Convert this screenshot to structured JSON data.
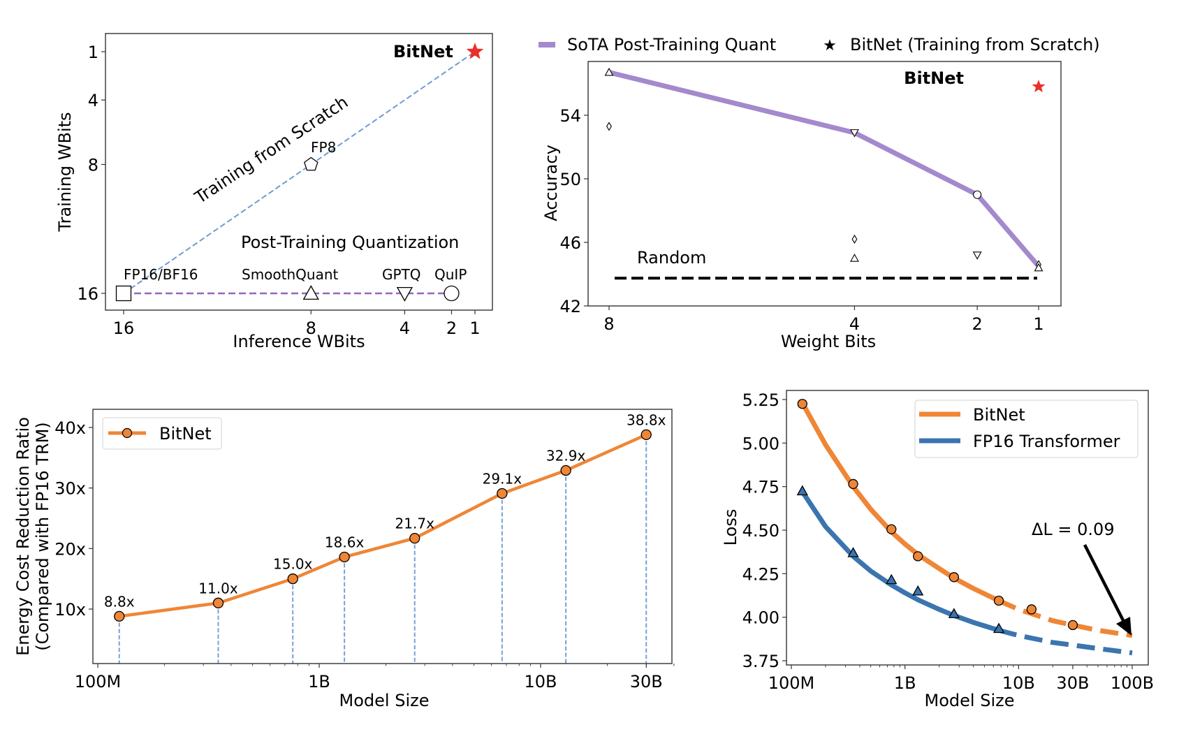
{
  "colors": {
    "bitnet_red": "#e8312a",
    "scratch_blue": "#6f9bd1",
    "ptq_purple": "#9467bd",
    "sota_line": "#a489cc",
    "orange": "#ef8636",
    "blue": "#3b75af",
    "black": "#000000",
    "stem_blue": "#7a9fd6"
  },
  "chart_data": [
    {
      "id": "wbits",
      "type": "scatter",
      "title": "",
      "xlabel": "Inference WBits",
      "ylabel": "Training WBits",
      "xlim": [
        16.5,
        0.25
      ],
      "ylim": [
        -0.1,
        17.1
      ],
      "x_inverted": true,
      "y_inverted": true,
      "xticks": [
        16,
        8,
        4,
        2,
        1
      ],
      "xtick_labels": [
        "16",
        "8",
        "4",
        "2",
        "1"
      ],
      "yticks": [
        1,
        4,
        8,
        16
      ],
      "ytick_labels": [
        "1",
        "4",
        "8",
        "16"
      ],
      "points": [
        {
          "label": "FP16/BF16",
          "x": 16,
          "y": 16,
          "marker": "square"
        },
        {
          "label": "SmoothQuant",
          "x": 8,
          "y": 16,
          "marker": "triangle-up"
        },
        {
          "label": "GPTQ",
          "x": 4,
          "y": 16,
          "marker": "triangle-down"
        },
        {
          "label": "QuIP",
          "x": 2,
          "y": 16,
          "marker": "circle"
        },
        {
          "label": "FP8",
          "x": 8,
          "y": 8,
          "marker": "pentagon"
        },
        {
          "label": "BitNet",
          "x": 1,
          "y": 1,
          "marker": "star"
        }
      ],
      "lines": [
        {
          "name": "Training from Scratch",
          "x": [
            16,
            1
          ],
          "y": [
            16,
            1
          ],
          "style": "dashed",
          "color_key": "scratch_blue"
        },
        {
          "name": "Post-Training Quantization",
          "x": [
            16,
            2
          ],
          "y": [
            16,
            16
          ],
          "style": "dashed",
          "color_key": "ptq_purple"
        }
      ],
      "annotations": [
        {
          "text": "Training from Scratch",
          "color_key": "scratch_blue"
        },
        {
          "text": "Post-Training Quantization",
          "color_key": "ptq_purple"
        },
        {
          "text": "BitNet",
          "color_key": "bitnet_red",
          "bold": true
        }
      ]
    },
    {
      "id": "accuracy",
      "type": "line",
      "xlabel": "Weight Bits",
      "ylabel": "Accuracy",
      "xlim": [
        8.35,
        -0.55
      ],
      "x_inverted": true,
      "ylim": [
        42,
        57.4
      ],
      "xticks": [
        8,
        4,
        2,
        1
      ],
      "xtick_labels": [
        "8",
        "4",
        "2",
        "1"
      ],
      "yticks": [
        42,
        46,
        50,
        54
      ],
      "ytick_labels": [
        "42",
        "46",
        "50",
        "54"
      ],
      "legend": {
        "placement": "top-outside",
        "entries": [
          {
            "label": "SoTA Post-Training Quant",
            "marker": "line",
            "color_key": "sota_line"
          },
          {
            "label": "BitNet (Training from Scratch)",
            "marker": "star",
            "color_key": "bitnet_red"
          }
        ]
      },
      "series": [
        {
          "name": "SoTA Post-Training Quant",
          "x": [
            8,
            4,
            2,
            1
          ],
          "y": [
            56.7,
            52.9,
            49.0,
            44.5
          ]
        }
      ],
      "method_points": [
        {
          "x": 8,
          "y": 56.7,
          "marker": "triangle-up"
        },
        {
          "x": 8,
          "y": 53.3,
          "marker": "diamond"
        },
        {
          "x": 4,
          "y": 52.9,
          "marker": "triangle-down"
        },
        {
          "x": 4,
          "y": 46.2,
          "marker": "diamond"
        },
        {
          "x": 4,
          "y": 45.0,
          "marker": "triangle-up"
        },
        {
          "x": 2,
          "y": 49.0,
          "marker": "circle"
        },
        {
          "x": 2,
          "y": 45.2,
          "marker": "triangle-down"
        },
        {
          "x": 1,
          "y": 44.6,
          "marker": "diamond"
        },
        {
          "x": 1,
          "y": 44.4,
          "marker": "triangle-up"
        }
      ],
      "bitnet": {
        "label": "BitNet",
        "x": 1,
        "y": 55.8
      },
      "random_baseline": {
        "label": "Random",
        "y": 43.75,
        "x_range": [
          8,
          1
        ]
      }
    },
    {
      "id": "energy",
      "type": "line",
      "xlabel": "Model Size",
      "ylabel": "Energy Cost Reduction Ratio\n(Compared with FP16 TRM)",
      "ylabel_lines": [
        "Energy Cost Reduction Ratio",
        "(Compared with FP16 TRM)"
      ],
      "x_scale": "log",
      "xlim": [
        0.096,
        48
      ],
      "ylim": [
        1,
        43
      ],
      "xticks": [
        0.1,
        1,
        10,
        30
      ],
      "xtick_labels": [
        "100M",
        "1B",
        "10B",
        "30B"
      ],
      "yticks": [
        10,
        20,
        30,
        40
      ],
      "ytick_labels": [
        "10x",
        "20x",
        "30x",
        "40x"
      ],
      "legend": {
        "placement": "top-left",
        "entries": [
          {
            "label": "BitNet",
            "color_key": "orange",
            "marker": "circle"
          }
        ]
      },
      "x_units": "billions of parameters",
      "series": [
        {
          "name": "BitNet",
          "x": [
            0.125,
            0.35,
            0.76,
            1.3,
            2.7,
            6.7,
            13,
            30
          ],
          "y": [
            8.8,
            11.0,
            15.0,
            18.6,
            21.7,
            29.1,
            32.9,
            38.8
          ],
          "data_labels": [
            "8.8x",
            "11.0x",
            "15.0x",
            "18.6x",
            "21.7x",
            "29.1x",
            "32.9x",
            "38.8x"
          ]
        }
      ]
    },
    {
      "id": "loss",
      "type": "line",
      "xlabel": "Model Size",
      "ylabel": "Loss",
      "x_scale": "log",
      "xlim": [
        0.092,
        135
      ],
      "ylim": [
        3.73,
        5.3
      ],
      "xticks": [
        0.1,
        1,
        10,
        30,
        100
      ],
      "xtick_labels": [
        "100M",
        "1B",
        "10B",
        "30B",
        "100B"
      ],
      "yticks": [
        3.75,
        4.0,
        4.25,
        4.5,
        4.75,
        5.0,
        5.25
      ],
      "ytick_labels": [
        "3.75",
        "4.00",
        "4.25",
        "4.50",
        "4.75",
        "5.00",
        "5.25"
      ],
      "x_units": "billions of parameters",
      "legend": {
        "placement": "top-right",
        "entries": [
          {
            "label": "BitNet",
            "color_key": "orange"
          },
          {
            "label": "FP16 Transformer",
            "color_key": "blue"
          }
        ]
      },
      "series": [
        {
          "name": "BitNet",
          "marker": "circle",
          "x": [
            0.125,
            0.35,
            0.76,
            1.3,
            2.7,
            6.7,
            13,
            30
          ],
          "y": [
            5.225,
            4.765,
            4.505,
            4.35,
            4.23,
            4.095,
            4.045,
            3.955
          ],
          "fit": {
            "x": [
              0.125,
              0.2,
              0.35,
              0.5,
              0.76,
              1.0,
              1.3,
              2.0,
              2.7,
              4.0,
              6.7,
              10,
              20,
              30,
              50,
              100
            ],
            "y": [
              5.23,
              4.99,
              4.75,
              4.62,
              4.49,
              4.42,
              4.36,
              4.28,
              4.225,
              4.165,
              4.095,
              4.045,
              3.98,
              3.955,
              3.925,
              3.895
            ],
            "solid_until": 6.7
          }
        },
        {
          "name": "FP16 Transformer",
          "marker": "triangle-up",
          "x": [
            0.125,
            0.35,
            0.76,
            1.3,
            2.7,
            6.7
          ],
          "y": [
            4.725,
            4.37,
            4.215,
            4.15,
            4.02,
            3.935
          ],
          "fit": {
            "x": [
              0.125,
              0.2,
              0.35,
              0.5,
              0.76,
              1.0,
              1.3,
              2.0,
              2.7,
              4.0,
              6.7,
              10,
              20,
              30,
              50,
              100
            ],
            "y": [
              4.72,
              4.52,
              4.35,
              4.265,
              4.185,
              4.14,
              4.1,
              4.045,
              4.01,
              3.97,
              3.925,
              3.895,
              3.855,
              3.84,
              3.82,
              3.795
            ],
            "solid_until": 6.7
          }
        }
      ],
      "annotations": [
        {
          "text": "ΔL = 0.09",
          "points_to": {
            "x": 100,
            "y": 3.9
          }
        }
      ]
    }
  ],
  "text": {
    "wbits_fp16": "FP16/BF16",
    "wbits_smoothquant": "SmoothQuant",
    "wbits_gptq": "GPTQ",
    "wbits_quip": "QuIP",
    "wbits_fp8": "FP8",
    "wbits_bitnet": "BitNet",
    "wbits_scratch": "Training from Scratch",
    "wbits_ptq": "Post-Training Quantization",
    "acc_bitnet": "BitNet",
    "acc_random": "Random",
    "loss_delta": "ΔL = 0.09"
  }
}
